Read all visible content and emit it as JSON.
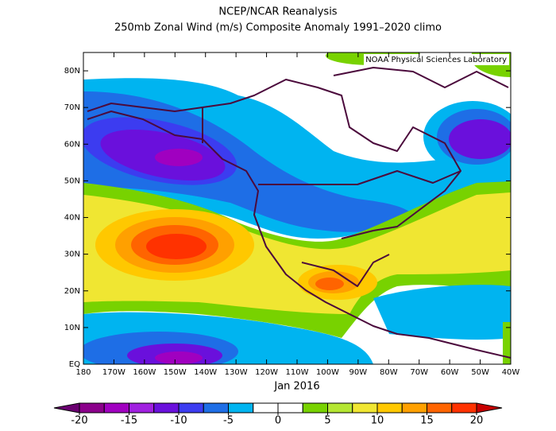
{
  "chart_data": {
    "type": "contour-map",
    "title": "NCEP/NCAR Reanalysis",
    "subtitle": "250mb Zonal Wind (m/s) Composite Anomaly 1991–2020 climo",
    "source": "NOAA Physical Sciences Laboratory",
    "xlabel": "Jan 2016",
    "xlim": [
      -180,
      -40
    ],
    "ylim": [
      0,
      85
    ],
    "xticks": [
      {
        "value": -180,
        "label": "180"
      },
      {
        "value": -170,
        "label": "170W"
      },
      {
        "value": -160,
        "label": "160W"
      },
      {
        "value": -150,
        "label": "150W"
      },
      {
        "value": -140,
        "label": "140W"
      },
      {
        "value": -130,
        "label": "130W"
      },
      {
        "value": -120,
        "label": "120W"
      },
      {
        "value": -110,
        "label": "110W"
      },
      {
        "value": -100,
        "label": "100W"
      },
      {
        "value": -90,
        "label": "90W"
      },
      {
        "value": -80,
        "label": "80W"
      },
      {
        "value": -70,
        "label": "70W"
      },
      {
        "value": -60,
        "label": "60W"
      },
      {
        "value": -50,
        "label": "50W"
      },
      {
        "value": -40,
        "label": "40W"
      }
    ],
    "yticks": [
      {
        "value": 0,
        "label": "EQ"
      },
      {
        "value": 10,
        "label": "10N"
      },
      {
        "value": 20,
        "label": "20N"
      },
      {
        "value": 30,
        "label": "30N"
      },
      {
        "value": 40,
        "label": "40N"
      },
      {
        "value": 50,
        "label": "50N"
      },
      {
        "value": 60,
        "label": "60N"
      },
      {
        "value": 70,
        "label": "70N"
      },
      {
        "value": 80,
        "label": "80N"
      }
    ],
    "colorbar": {
      "levels": [
        -20,
        -17.5,
        -15,
        -12.5,
        -10,
        -7.5,
        -5,
        -2.5,
        0,
        2.5,
        5,
        7.5,
        10,
        12.5,
        15,
        17.5,
        20
      ],
      "colors": [
        "#6a0070",
        "#8b008b",
        "#a000c0",
        "#a020e0",
        "#6a10dc",
        "#3c3cf0",
        "#1e6ee6",
        "#00b4f0",
        "#ffffff",
        "#ffffff",
        "#78d200",
        "#b4e632",
        "#f0e632",
        "#ffc800",
        "#ffa000",
        "#ff6400",
        "#ff3200",
        "#c80000"
      ],
      "ticks": [
        -20,
        -15,
        -10,
        -5,
        0,
        5,
        10,
        15,
        20
      ]
    }
  }
}
